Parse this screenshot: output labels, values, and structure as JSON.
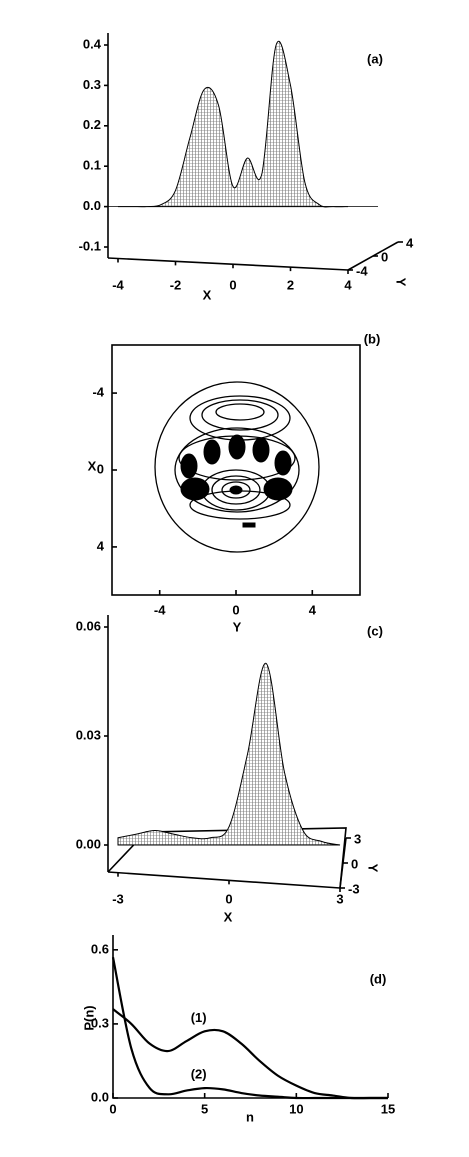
{
  "chart_data": [
    {
      "type": "surface",
      "label": "(a)",
      "x_label": "X",
      "y_label": "Y",
      "x": [
        -4,
        -3.5,
        -3,
        -2.5,
        -2,
        -1.5,
        -1,
        -0.5,
        0,
        0.5,
        1,
        1.5,
        2,
        2.5,
        3,
        3.5,
        4
      ],
      "values": [
        0,
        0,
        0,
        0.005,
        0.04,
        0.17,
        0.29,
        0.25,
        0.05,
        0.12,
        0.08,
        0.4,
        0.3,
        0.06,
        0.005,
        0,
        0
      ],
      "xlim": [
        -4,
        4
      ],
      "xticks": [
        -4,
        -2,
        0,
        2,
        4
      ],
      "ylim": [
        -4,
        4
      ],
      "yticks": [
        -4,
        0,
        4
      ],
      "zlim": [
        -0.1,
        0.4
      ],
      "zticks": [
        -0.1,
        {
          "value": 0,
          "label": "0.0"
        },
        0.1,
        0.2,
        0.3,
        0.4
      ],
      "color": "#000000"
    },
    {
      "type": "contour",
      "label": "(b)",
      "x_label": "Y",
      "y_label": "X",
      "xlim": [
        -6.5,
        6.5
      ],
      "xticks": [
        -4,
        0,
        4
      ],
      "ylim": [
        -6.5,
        6.5
      ],
      "yticks": [
        -4,
        0,
        4
      ],
      "y_inverted": true
    },
    {
      "type": "surface",
      "label": "(c)",
      "x_label": "X",
      "y_label": "Y",
      "x": [
        -3,
        -2.5,
        -2,
        -1.5,
        -1,
        -0.5,
        0,
        0.5,
        1,
        1.5,
        2,
        2.5,
        3
      ],
      "values": [
        0.002,
        0.003,
        0.004,
        0.003,
        0.002,
        0.002,
        0.005,
        0.025,
        0.05,
        0.02,
        0.004,
        0.001,
        0
      ],
      "xlim": [
        -3,
        3
      ],
      "xticks": [
        -3,
        0,
        3
      ],
      "ylim": [
        -3,
        3
      ],
      "yticks": [
        -3,
        0,
        3
      ],
      "zlim": [
        0,
        0.06
      ],
      "zticks": [
        {
          "value": 0,
          "label": "0.00"
        },
        0.03,
        0.06
      ],
      "color": "#000000"
    },
    {
      "type": "line",
      "label": "(d)",
      "x_label": "n",
      "y_label": "P(n)",
      "x": [
        0,
        1,
        2,
        3,
        4,
        5,
        6,
        7,
        8,
        9,
        10,
        11,
        12,
        13,
        14,
        15
      ],
      "series": [
        {
          "name": "(1)",
          "color": "#000000",
          "values": [
            0.36,
            0.3,
            0.22,
            0.19,
            0.23,
            0.27,
            0.27,
            0.22,
            0.15,
            0.09,
            0.05,
            0.02,
            0.01,
            0,
            0,
            0
          ]
        },
        {
          "name": "(2)",
          "color": "#000000",
          "values": [
            0.57,
            0.2,
            0.04,
            0.015,
            0.03,
            0.04,
            0.035,
            0.02,
            0.01,
            0.005,
            0,
            0,
            0,
            0,
            0,
            0
          ]
        }
      ],
      "xlim": [
        0,
        15
      ],
      "xticks": [
        0,
        5,
        10,
        15
      ],
      "ylim": [
        0,
        0.66
      ],
      "yticks": [
        {
          "value": 0,
          "label": "0.0"
        },
        0.3,
        0.6
      ]
    }
  ]
}
